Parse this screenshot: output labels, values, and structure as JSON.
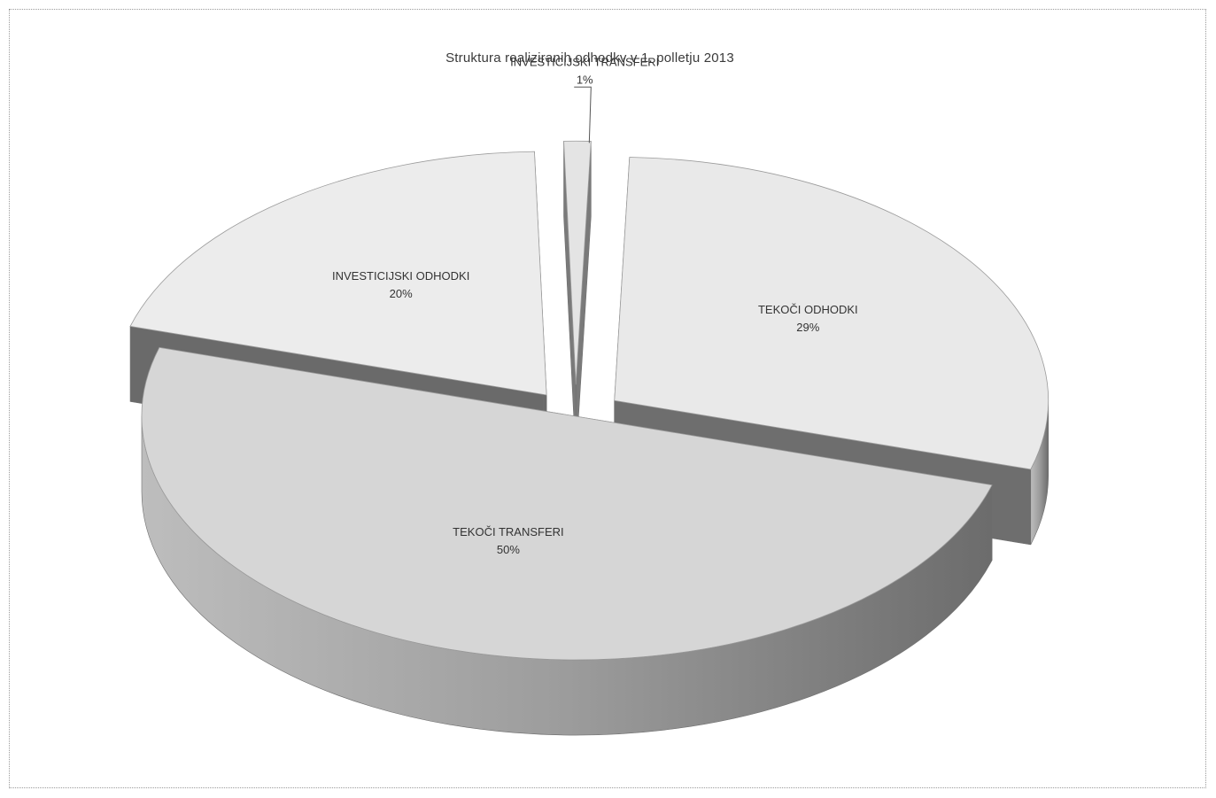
{
  "chart_data": {
    "type": "pie",
    "style": "3d-exploded",
    "title": "Struktura realiziranih odhodkv v 1. polletju 2013",
    "unit": "%",
    "slices": [
      {
        "label": "TEKOČI ODHODKI",
        "value": 29,
        "value_label": "29%",
        "color": "#e9e9e9",
        "side_color": "#6e6e6e"
      },
      {
        "label": "TEKOČI TRANSFERI",
        "value": 50,
        "value_label": "50%",
        "color": "#d6d6d6",
        "side_color": "#8c8c8c"
      },
      {
        "label": "INVESTICIJSKI ODHODKI",
        "value": 20,
        "value_label": "20%",
        "color": "#ececec",
        "side_color": "#6a6a6a"
      },
      {
        "label": "INVESTICIJSKI TRANSFERI",
        "value": 1,
        "value_label": "1%",
        "color": "#e4e4e4",
        "side_color": "#7a7a7a"
      }
    ],
    "legend": "none",
    "data_labels": "category-and-percent"
  }
}
